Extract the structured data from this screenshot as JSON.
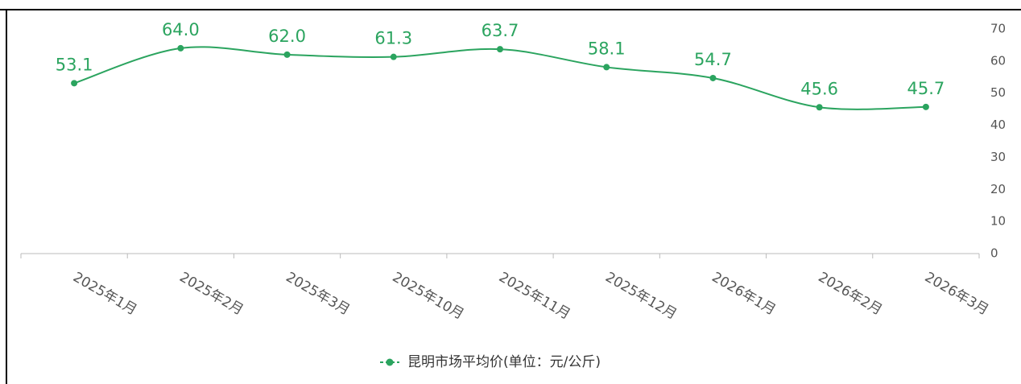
{
  "chart_data": {
    "type": "line",
    "categories": [
      "2025年1月",
      "2025年2月",
      "2025年3月",
      "2025年10月",
      "2025年11月",
      "2025年12月",
      "2026年1月",
      "2026年2月",
      "2026年3月"
    ],
    "series": [
      {
        "name": "昆明市场平均价(单位：元/公斤)",
        "color": "#2ba45f",
        "values": [
          53.1,
          64.0,
          62.0,
          61.3,
          63.7,
          58.1,
          54.7,
          45.6,
          45.7
        ],
        "value_labels": [
          "53.1",
          "64.0",
          "62.0",
          "61.3",
          "63.7",
          "58.1",
          "54.7",
          "45.6",
          "45.7"
        ]
      }
    ],
    "ylim": [
      0,
      70
    ],
    "yticks": [
      0,
      10,
      20,
      30,
      40,
      50,
      60,
      70
    ],
    "y_axis_side": "right",
    "smooth": true
  }
}
